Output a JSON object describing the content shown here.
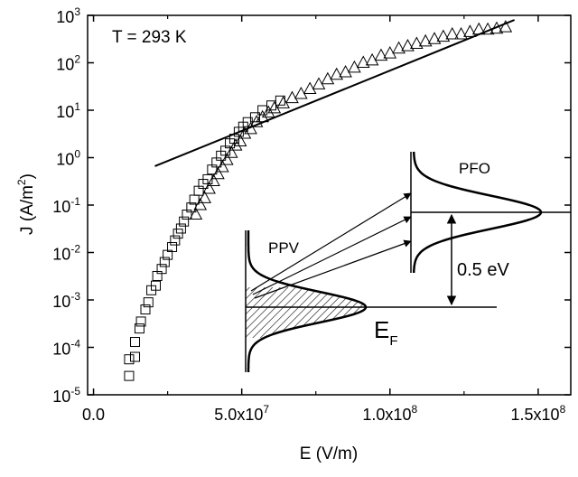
{
  "chart_data": {
    "type": "scatter",
    "x_label": "E (V/m)",
    "y_label": [
      "J (A/m",
      "2",
      ")"
    ],
    "annotations": [
      "T = 293 K",
      "PPV",
      "PFO",
      "0.5 eV"
    ],
    "fermi_label": [
      "E",
      "F"
    ],
    "log_y": true,
    "xlim": [
      -2000000,
      161000000
    ],
    "ylim": [
      1e-05,
      1000
    ],
    "xticks": [
      {
        "value": 0,
        "label": "0.0"
      },
      {
        "value": 50000000,
        "label": [
          "5.0x10",
          "7"
        ]
      },
      {
        "value": 100000000,
        "label": [
          "1.0x10",
          "8"
        ]
      },
      {
        "value": 150000000,
        "label": [
          "1.5x10",
          "8"
        ]
      }
    ],
    "xminor": [
      25000000,
      75000000,
      125000000
    ],
    "yticks": [
      {
        "value": 1e-05,
        "label": [
          "10",
          "-5"
        ]
      },
      {
        "value": 0.0001,
        "label": [
          "10",
          "-4"
        ]
      },
      {
        "value": 0.001,
        "label": [
          "10",
          "-3"
        ]
      },
      {
        "value": 0.01,
        "label": [
          "10",
          "-2"
        ]
      },
      {
        "value": 0.1,
        "label": [
          "10",
          "-1"
        ]
      },
      {
        "value": 1,
        "label": [
          "10",
          "0"
        ]
      },
      {
        "value": 10,
        "label": [
          "10",
          "1"
        ]
      },
      {
        "value": 100,
        "label": [
          "10",
          "2"
        ]
      },
      {
        "value": 1000,
        "label": [
          "10",
          "3"
        ]
      }
    ],
    "series": [
      {
        "marker": "square",
        "color": "#000000",
        "x": [
          12000000.0,
          12000000.0,
          14000000.0,
          14000000.0,
          15500000.0,
          16000000.0,
          17500000.0,
          18500000.0,
          19500000.0,
          21000000.0,
          21500000.0,
          23000000.0,
          24000000.0,
          25000000.0,
          26500000.0,
          27500000.0,
          28500000.0,
          29500000.0,
          30500000.0,
          31500000.0,
          33000000.0,
          34000000.0,
          35500000.0,
          37000000.0,
          38500000.0,
          40000000.0,
          41500000.0,
          43000000.0,
          44500000.0,
          46000000.0,
          47500000.0,
          49000000.0,
          50500000.0,
          52000000.0,
          54500000.0,
          57000000.0,
          60000000.0,
          63000000.0
        ],
        "values": [
          2.5e-05,
          5.6e-05,
          6.3e-05,
          0.00013,
          0.00025,
          0.00035,
          0.00063,
          0.00089,
          0.0016,
          0.002,
          0.0032,
          0.0045,
          0.0063,
          0.0089,
          0.013,
          0.018,
          0.025,
          0.032,
          0.045,
          0.063,
          0.089,
          0.13,
          0.2,
          0.28,
          0.35,
          0.56,
          0.79,
          1.1,
          1.4,
          2,
          2.5,
          3.5,
          4.5,
          5.6,
          7.1,
          10,
          12.6,
          16
        ]
      },
      {
        "marker": "triangle",
        "color": "#000000",
        "x": [
          34500000.0,
          36000000.0,
          37500000.0,
          39000000.0,
          40500000.0,
          42000000.0,
          43500000.0,
          45000000.0,
          46500000.0,
          48000000.0,
          49500000.0,
          51000000.0,
          53000000.0,
          55000000.0,
          57000000.0,
          59000000.0,
          61000000.0,
          64000000.0,
          67000000.0,
          70000000.0,
          73000000.0,
          76000000.0,
          79000000.0,
          82000000.0,
          85000000.0,
          88000000.0,
          91000000.0,
          94000000.0,
          97000000.0,
          100000000.0,
          103000000.0,
          106000000.0,
          109000000.0,
          112000000.0,
          115000000.0,
          118000000.0,
          121000000.0,
          124000000.0,
          127000000.0,
          130000000.0,
          133000000.0,
          136000000.0,
          139000000.0
        ],
        "values": [
          0.063,
          0.1,
          0.14,
          0.22,
          0.32,
          0.45,
          0.63,
          0.89,
          1.26,
          1.8,
          2.2,
          3.2,
          4,
          5.6,
          7.1,
          8.9,
          11,
          14,
          18,
          22,
          28,
          35,
          45,
          56,
          63,
          79,
          100,
          112,
          141,
          158,
          200,
          224,
          251,
          282,
          316,
          355,
          398,
          398,
          447,
          501,
          501,
          525,
          562
        ]
      },
      {
        "marker": "line",
        "color": "#000000",
        "x": [
          20700000.0,
          142000000.0
        ],
        "values": [
          0.66,
          800
        ]
      }
    ]
  }
}
